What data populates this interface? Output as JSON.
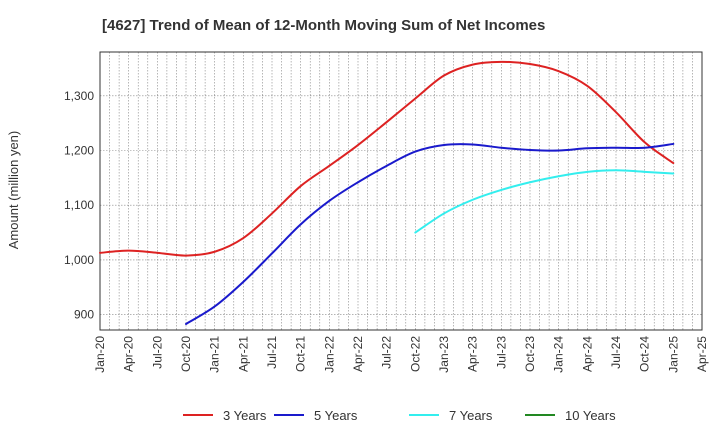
{
  "chart_data": {
    "type": "line",
    "title": "[4627]  Trend of Mean of 12-Month Moving Sum of Net Incomes",
    "xlabel": "",
    "ylabel": "Amount (million yen)",
    "x_tick_labels": [
      "Jan-20",
      "Apr-20",
      "Jul-20",
      "Oct-20",
      "Jan-21",
      "Apr-21",
      "Jul-21",
      "Oct-21",
      "Jan-22",
      "Apr-22",
      "Jul-22",
      "Oct-22",
      "Jan-23",
      "Apr-23",
      "Jul-23",
      "Oct-23",
      "Jan-24",
      "Apr-24",
      "Jul-24",
      "Oct-24",
      "Jan-25",
      "Apr-25"
    ],
    "y_ticks": [
      900,
      1000,
      1100,
      1200,
      1300
    ],
    "y_tick_labels": [
      "900",
      "1,000",
      "1,100",
      "1,200",
      "1,300"
    ],
    "xlim": [
      "Jan-20",
      "Apr-25"
    ],
    "ylim": [
      872,
      1380
    ],
    "grid": true,
    "legend_position": "bottom",
    "series": [
      {
        "name": "3 Years",
        "color": "#dd2222",
        "x": [
          "Jan-20",
          "Apr-20",
          "Jul-20",
          "Oct-20",
          "Jan-21",
          "Apr-21",
          "Jul-21",
          "Oct-21",
          "Jan-22",
          "Apr-22",
          "Jul-22",
          "Oct-22",
          "Jan-23",
          "Apr-23",
          "Jul-23",
          "Oct-23",
          "Jan-24",
          "Apr-24",
          "Jul-24",
          "Oct-24",
          "Jan-25"
        ],
        "values": [
          1013,
          1017,
          1013,
          1008,
          1015,
          1040,
          1085,
          1135,
          1172,
          1210,
          1252,
          1295,
          1337,
          1357,
          1362,
          1358,
          1345,
          1318,
          1270,
          1215,
          1177
        ]
      },
      {
        "name": "5 Years",
        "color": "#1a1acc",
        "x": [
          "Oct-20",
          "Jan-21",
          "Apr-21",
          "Jul-21",
          "Oct-21",
          "Jan-22",
          "Apr-22",
          "Jul-22",
          "Oct-22",
          "Jan-23",
          "Apr-23",
          "Jul-23",
          "Oct-23",
          "Jan-24",
          "Apr-24",
          "Jul-24",
          "Oct-24",
          "Jan-25"
        ],
        "values": [
          883,
          915,
          960,
          1012,
          1065,
          1108,
          1142,
          1172,
          1198,
          1210,
          1211,
          1205,
          1201,
          1200,
          1204,
          1205,
          1205,
          1212
        ]
      },
      {
        "name": "7 Years",
        "color": "#33eeee",
        "x": [
          "Oct-22",
          "Jan-23",
          "Apr-23",
          "Jul-23",
          "Oct-23",
          "Jan-24",
          "Apr-24",
          "Jul-24",
          "Oct-24",
          "Jan-25"
        ],
        "values": [
          1050,
          1085,
          1110,
          1128,
          1142,
          1153,
          1161,
          1164,
          1161,
          1158
        ]
      },
      {
        "name": "10 Years",
        "color": "#228822",
        "x": [],
        "values": []
      }
    ]
  }
}
